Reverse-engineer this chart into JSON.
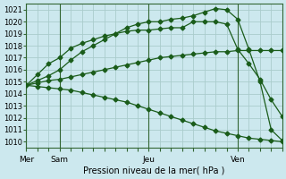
{
  "xlabel": "Pression niveau de la mer( hPa )",
  "bg_color": "#cce8ee",
  "grid_color": "#aacccc",
  "line_color": "#1a5c1a",
  "ylim": [
    1009.5,
    1021.5
  ],
  "yticks": [
    1010,
    1011,
    1012,
    1013,
    1014,
    1015,
    1016,
    1017,
    1018,
    1019,
    1020,
    1021
  ],
  "day_labels": [
    "Mer",
    "Sam",
    "Jeu",
    "Ven"
  ],
  "day_positions": [
    0,
    3,
    11,
    19
  ],
  "xlim": [
    0,
    23
  ],
  "line1": {
    "x": [
      0,
      1,
      2,
      3,
      4,
      5,
      6,
      7,
      8,
      9,
      10,
      11,
      12,
      13,
      14,
      15,
      16,
      17,
      18,
      19,
      20,
      21,
      22,
      23
    ],
    "y": [
      1014.7,
      1014.6,
      1014.5,
      1014.4,
      1014.3,
      1014.1,
      1013.9,
      1013.7,
      1013.5,
      1013.3,
      1013.0,
      1012.7,
      1012.4,
      1012.1,
      1011.8,
      1011.5,
      1011.2,
      1010.9,
      1010.7,
      1010.5,
      1010.3,
      1010.2,
      1010.1,
      1010.0
    ]
  },
  "line2": {
    "x": [
      0,
      1,
      2,
      3,
      4,
      5,
      6,
      7,
      8,
      9,
      10,
      11,
      12,
      13,
      14,
      15,
      16,
      17,
      18,
      19,
      20,
      21,
      22,
      23
    ],
    "y": [
      1014.7,
      1014.9,
      1015.1,
      1015.2,
      1015.4,
      1015.6,
      1015.8,
      1016.0,
      1016.2,
      1016.4,
      1016.6,
      1016.8,
      1017.0,
      1017.1,
      1017.2,
      1017.3,
      1017.4,
      1017.5,
      1017.5,
      1017.6,
      1017.6,
      1017.6,
      1017.6,
      1017.6
    ]
  },
  "line3": {
    "x": [
      0,
      1,
      2,
      3,
      4,
      5,
      6,
      7,
      8,
      9,
      10,
      11,
      12,
      13,
      14,
      15,
      16,
      17,
      18,
      19,
      20,
      21,
      22,
      23
    ],
    "y": [
      1014.7,
      1015.6,
      1016.5,
      1017.0,
      1017.8,
      1018.2,
      1018.5,
      1018.8,
      1019.0,
      1019.2,
      1019.3,
      1019.3,
      1019.4,
      1019.5,
      1019.5,
      1020.0,
      1020.0,
      1020.0,
      1019.8,
      1017.7,
      1016.5,
      1015.2,
      1013.5,
      1012.1
    ]
  },
  "line4": {
    "x": [
      0,
      1,
      2,
      3,
      4,
      5,
      6,
      7,
      8,
      9,
      10,
      11,
      12,
      13,
      14,
      15,
      16,
      17,
      18,
      19,
      20,
      21,
      22,
      23
    ],
    "y": [
      1014.7,
      1015.1,
      1015.5,
      1016.0,
      1016.8,
      1017.5,
      1018.0,
      1018.5,
      1019.0,
      1019.5,
      1019.8,
      1020.0,
      1020.0,
      1020.2,
      1020.3,
      1020.5,
      1020.8,
      1021.1,
      1021.0,
      1020.2,
      1017.7,
      1015.0,
      1011.0,
      1010.1
    ]
  }
}
